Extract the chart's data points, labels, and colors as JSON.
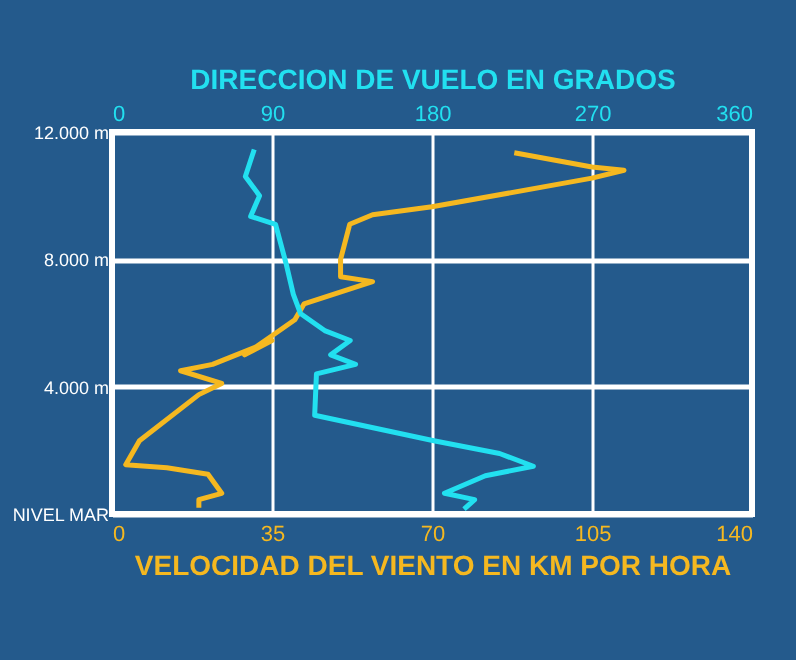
{
  "chart_data": {
    "type": "line",
    "xlabel": "VELOCIDAD DEL VIENTO EN KM POR HORA",
    "x2label": "DIRECCION DE VUELO EN GRADOS",
    "xlim": [
      0,
      140
    ],
    "xticks": [
      0,
      35,
      70,
      105,
      140
    ],
    "x2lim": [
      0,
      360
    ],
    "x2ticks": [
      0,
      90,
      180,
      270,
      360
    ],
    "ylim": [
      0,
      12000
    ],
    "yticks": [
      {
        "value": 0,
        "label": "NIVEL MAR"
      },
      {
        "value": 4000,
        "label": "4.000 m"
      },
      {
        "value": 8000,
        "label": "8.000 m"
      },
      {
        "value": 12000,
        "label": "12.000 m"
      }
    ],
    "grid": true,
    "line_style": "solid",
    "series": [
      {
        "color": "#f5b820",
        "x": [
          88,
          105,
          112,
          105,
          70,
          57,
          52,
          50,
          50,
          57,
          42,
          40,
          35,
          29,
          35,
          22,
          15,
          24,
          19,
          6,
          3,
          12,
          21,
          24,
          19,
          19
        ],
        "values": [
          11350,
          10900,
          10800,
          10550,
          9650,
          9400,
          9100,
          8000,
          7450,
          7300,
          6600,
          6100,
          5600,
          5000,
          5450,
          4700,
          4500,
          4100,
          3750,
          2300,
          1550,
          1450,
          1250,
          650,
          450,
          200
        ]
      },
      {
        "color": "#22e0f0",
        "axis": "x2",
        "x": [
          80,
          75,
          83,
          78,
          92,
          98,
          102,
          106,
          120,
          134,
          123,
          137,
          115,
          114,
          181,
          218,
          237,
          210,
          187,
          204,
          198
        ],
        "values": [
          11450,
          10600,
          10000,
          9350,
          9100,
          7850,
          6900,
          6300,
          5750,
          5450,
          5000,
          4700,
          4400,
          3100,
          2300,
          1900,
          1500,
          1200,
          650,
          450,
          150
        ]
      }
    ]
  }
}
